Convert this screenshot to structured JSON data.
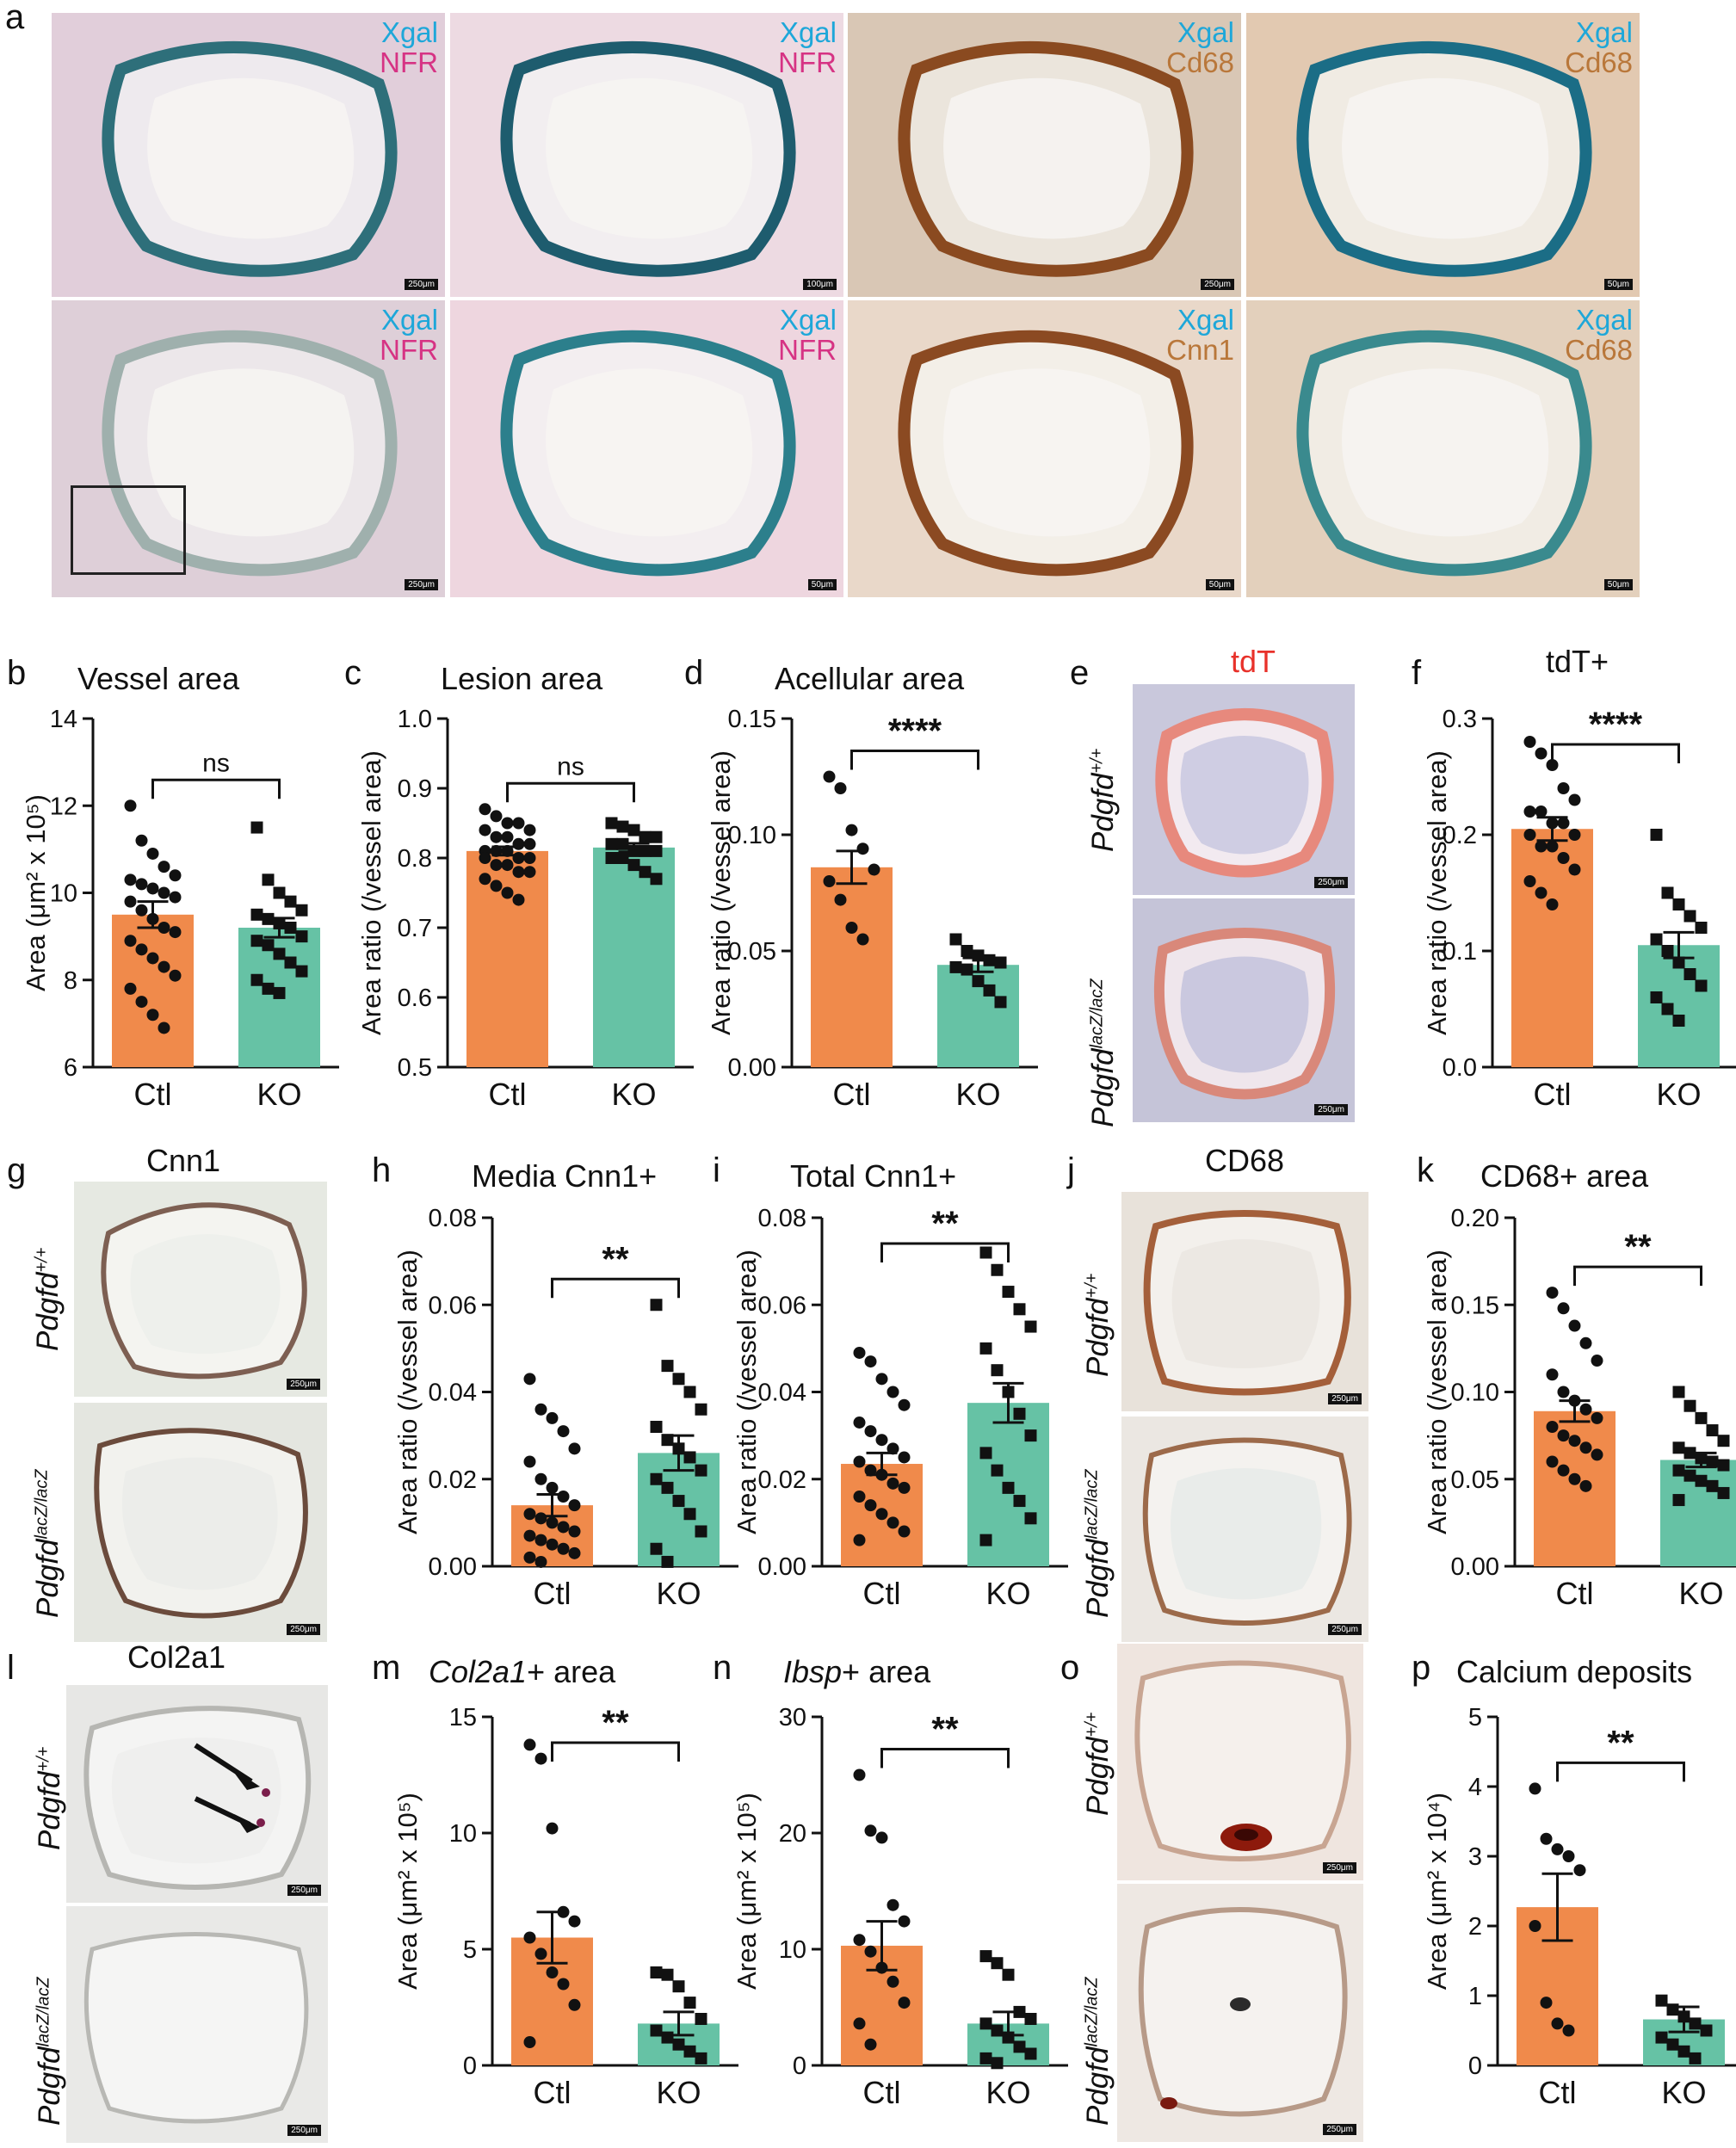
{
  "panels": {
    "a": {
      "label": "a",
      "tiles": [
        {
          "stains": [
            {
              "text": "Xgal",
              "color": "#1ea7d9"
            },
            {
              "text": "NFR",
              "color": "#d63384"
            }
          ],
          "scale": "250μm",
          "bg": "#eeeaee",
          "tissue": "#c99bb4",
          "ring": "#2e6f7a"
        },
        {
          "stains": [
            {
              "text": "Xgal",
              "color": "#1ea7d9"
            },
            {
              "text": "NFR",
              "color": "#d63384"
            }
          ],
          "scale": "100μm",
          "bg": "#f2eef0",
          "tissue": "#e4b5c9",
          "ring": "#1e5c6e"
        },
        {
          "stains": [
            {
              "text": "Xgal",
              "color": "#1ea7d9"
            },
            {
              "text": "Cd68",
              "color": "#b9773a"
            }
          ],
          "scale": "250μm",
          "bg": "#ebe5dc",
          "tissue": "#b7906e",
          "ring": "#8a4a20"
        },
        {
          "stains": [
            {
              "text": "Xgal",
              "color": "#1ea7d9"
            },
            {
              "text": "Cd68",
              "color": "#b9773a"
            }
          ],
          "scale": "50μm",
          "bg": "#f0ebe3",
          "tissue": "#c98a54",
          "ring": "#1b6d86"
        },
        {
          "stains": [
            {
              "text": "Xgal",
              "color": "#1ea7d9"
            },
            {
              "text": "NFR",
              "color": "#d63384"
            }
          ],
          "scale": "250μm",
          "bg": "#ece7ea",
          "tissue": "#c7a2b6",
          "ring": "#9fb0ad"
        },
        {
          "stains": [
            {
              "text": "Xgal",
              "color": "#1ea7d9"
            },
            {
              "text": "NFR",
              "color": "#d63384"
            }
          ],
          "scale": "50μm",
          "bg": "#f3eef0",
          "tissue": "#e6a8c1",
          "ring": "#2c7f8c"
        },
        {
          "stains": [
            {
              "text": "Xgal",
              "color": "#1ea7d9"
            },
            {
              "text": "Cnn1",
              "color": "#b9773a"
            }
          ],
          "scale": "50μm",
          "bg": "#f3efe8",
          "tissue": "#d7b08e",
          "ring": "#8b4a22"
        },
        {
          "stains": [
            {
              "text": "Xgal",
              "color": "#1ea7d9"
            },
            {
              "text": "Cd68",
              "color": "#b9773a"
            }
          ],
          "scale": "50μm",
          "bg": "#f1ece4",
          "tissue": "#c99d74",
          "ring": "#3a8a8e"
        }
      ]
    },
    "b": {
      "label": "b",
      "title": "Vessel area"
    },
    "c": {
      "label": "c",
      "title": "Lesion area"
    },
    "d": {
      "label": "d",
      "title": "Acellular area"
    },
    "e": {
      "label": "e",
      "title": "tdT",
      "title_color": "#e8312a",
      "scale": "250μm",
      "row1": {
        "gene": "Pdgfd",
        "sup": "+/+"
      },
      "row2": {
        "gene": "Pdgfd",
        "sup": "lacZ/lacZ"
      }
    },
    "f": {
      "label": "f",
      "title": "tdT+"
    },
    "g": {
      "label": "g",
      "title": "Cnn1",
      "scale": "250μm",
      "row1": {
        "gene": "Pdgfd",
        "sup": "+/+"
      },
      "row2": {
        "gene": "Pdgfd",
        "sup": "lacZ/lacZ"
      }
    },
    "h": {
      "label": "h",
      "title": "Media Cnn1+"
    },
    "i": {
      "label": "i",
      "title": "Total Cnn1+"
    },
    "j": {
      "label": "j",
      "title": "CD68",
      "scale": "250μm",
      "row1": {
        "gene": "Pdgfd",
        "sup": "+/+"
      },
      "row2": {
        "gene": "Pdgfd",
        "sup": "lacZ/lacZ"
      }
    },
    "k": {
      "label": "k",
      "title": "CD68+ area"
    },
    "l": {
      "label": "l",
      "title": "Col2a1",
      "scale": "250μm",
      "row1": {
        "gene": "Pdgfd",
        "sup": "+/+"
      },
      "row2": {
        "gene": "Pdgfd",
        "sup": "lacZ/lacZ"
      }
    },
    "m": {
      "label": "m",
      "title": "Col2a1",
      "title_suffix": "+ area"
    },
    "n": {
      "label": "n",
      "title": "Ibsp",
      "title_suffix": "+ area"
    },
    "o": {
      "label": "o",
      "scale": "250μm",
      "row1": {
        "gene": "Pdgfd",
        "sup": "+/+"
      },
      "row2": {
        "gene": "Pdgfd",
        "sup": "lacZ/lacZ"
      }
    },
    "p": {
      "label": "p",
      "title": "Calcium deposits"
    }
  },
  "colors": {
    "ctl": "#f08a4b",
    "ko": "#66c2a5"
  },
  "chart_data": [
    {
      "id": "b",
      "type": "bar",
      "categories": [
        "Ctl",
        "KO"
      ],
      "ylabel": "Area (μm² x 10⁵)",
      "ylim": [
        6,
        14
      ],
      "yticks": [
        6,
        8,
        10,
        12,
        14
      ],
      "tick_labels": [
        "6",
        "8",
        "10",
        "12",
        "14"
      ],
      "values": [
        9.5,
        9.2
      ],
      "sem": [
        0.3,
        0.22
      ],
      "sig": "ns",
      "points": [
        [
          12.0,
          11.2,
          10.9,
          10.6,
          10.4,
          10.3,
          10.2,
          10.1,
          10.0,
          9.9,
          9.8,
          9.6,
          9.4,
          9.2,
          9.1,
          8.9,
          8.7,
          8.5,
          8.3,
          8.1,
          7.8,
          7.5,
          7.2,
          6.9
        ],
        [
          11.5,
          10.3,
          10.0,
          9.8,
          9.6,
          9.5,
          9.4,
          9.3,
          9.2,
          9.0,
          8.9,
          8.8,
          8.6,
          8.4,
          8.2,
          8.0,
          7.8,
          7.7
        ]
      ]
    },
    {
      "id": "c",
      "type": "bar",
      "categories": [
        "Ctl",
        "KO"
      ],
      "ylabel": "Area ratio (/vessel area)",
      "ylim": [
        0.5,
        1.0
      ],
      "yticks": [
        0.5,
        0.6,
        0.7,
        0.8,
        0.9,
        1.0
      ],
      "tick_labels": [
        "0.5",
        "0.6",
        "0.7",
        "0.8",
        "0.9",
        "1.0"
      ],
      "values": [
        0.81,
        0.815
      ],
      "sem": [
        0.006,
        0.006
      ],
      "sig": "ns",
      "points": [
        [
          0.87,
          0.86,
          0.85,
          0.85,
          0.84,
          0.84,
          0.83,
          0.83,
          0.82,
          0.82,
          0.81,
          0.81,
          0.81,
          0.8,
          0.8,
          0.8,
          0.79,
          0.79,
          0.78,
          0.78,
          0.77,
          0.76,
          0.75,
          0.74
        ],
        [
          0.85,
          0.845,
          0.84,
          0.83,
          0.83,
          0.82,
          0.82,
          0.81,
          0.81,
          0.81,
          0.8,
          0.8,
          0.79,
          0.78,
          0.77
        ]
      ]
    },
    {
      "id": "d",
      "type": "bar",
      "categories": [
        "Ctl",
        "KO"
      ],
      "ylabel": "Area ratio (/vessel area)",
      "ylim": [
        0,
        0.15
      ],
      "yticks": [
        0,
        0.05,
        0.1,
        0.15
      ],
      "tick_labels": [
        "0.00",
        "0.05",
        "0.10",
        "0.15"
      ],
      "values": [
        0.086,
        0.044
      ],
      "sem": [
        0.007,
        0.003
      ],
      "sig": "****",
      "points": [
        [
          0.125,
          0.12,
          0.102,
          0.094,
          0.085,
          0.08,
          0.072,
          0.06,
          0.055
        ],
        [
          0.055,
          0.05,
          0.048,
          0.046,
          0.045,
          0.043,
          0.042,
          0.037,
          0.033,
          0.028
        ]
      ]
    },
    {
      "id": "f",
      "type": "bar",
      "categories": [
        "Ctl",
        "KO"
      ],
      "ylabel": "Area ratio (/vessel area)",
      "ylim": [
        0,
        0.3
      ],
      "yticks": [
        0,
        0.1,
        0.2,
        0.3
      ],
      "tick_labels": [
        "0.0",
        "0.1",
        "0.2",
        "0.3"
      ],
      "values": [
        0.205,
        0.105
      ],
      "sem": [
        0.01,
        0.011
      ],
      "sig": "****",
      "points": [
        [
          0.28,
          0.27,
          0.26,
          0.24,
          0.23,
          0.22,
          0.22,
          0.21,
          0.21,
          0.2,
          0.2,
          0.19,
          0.19,
          0.18,
          0.17,
          0.16,
          0.15,
          0.14
        ],
        [
          0.2,
          0.15,
          0.14,
          0.13,
          0.12,
          0.11,
          0.1,
          0.09,
          0.08,
          0.07,
          0.06,
          0.05,
          0.04
        ]
      ]
    },
    {
      "id": "h",
      "type": "bar",
      "categories": [
        "Ctl",
        "KO"
      ],
      "ylabel": "Area ratio (/vessel area)",
      "ylim": [
        0,
        0.08
      ],
      "yticks": [
        0,
        0.02,
        0.04,
        0.06,
        0.08
      ],
      "tick_labels": [
        "0.00",
        "0.02",
        "0.04",
        "0.06",
        "0.08"
      ],
      "values": [
        0.014,
        0.026
      ],
      "sem": [
        0.0025,
        0.004
      ],
      "sig": "**",
      "points": [
        [
          0.043,
          0.036,
          0.034,
          0.031,
          0.027,
          0.024,
          0.02,
          0.018,
          0.016,
          0.014,
          0.012,
          0.011,
          0.01,
          0.009,
          0.008,
          0.007,
          0.006,
          0.005,
          0.004,
          0.003,
          0.002,
          0.001
        ],
        [
          0.06,
          0.046,
          0.043,
          0.04,
          0.036,
          0.032,
          0.029,
          0.027,
          0.025,
          0.022,
          0.02,
          0.018,
          0.015,
          0.012,
          0.008,
          0.004,
          0.001
        ]
      ]
    },
    {
      "id": "i",
      "type": "bar",
      "categories": [
        "Ctl",
        "KO"
      ],
      "ylabel": "Area ratio (/vessel area)",
      "ylim": [
        0,
        0.08
      ],
      "yticks": [
        0,
        0.02,
        0.04,
        0.06,
        0.08
      ],
      "tick_labels": [
        "0.00",
        "0.02",
        "0.04",
        "0.06",
        "0.08"
      ],
      "values": [
        0.0235,
        0.0375
      ],
      "sem": [
        0.0025,
        0.0045
      ],
      "sig": "**",
      "points": [
        [
          0.049,
          0.047,
          0.043,
          0.04,
          0.037,
          0.033,
          0.031,
          0.029,
          0.027,
          0.025,
          0.024,
          0.022,
          0.021,
          0.019,
          0.018,
          0.016,
          0.014,
          0.012,
          0.01,
          0.008,
          0.006
        ],
        [
          0.072,
          0.068,
          0.063,
          0.059,
          0.055,
          0.05,
          0.045,
          0.04,
          0.035,
          0.03,
          0.026,
          0.022,
          0.018,
          0.015,
          0.011,
          0.006
        ]
      ]
    },
    {
      "id": "k",
      "type": "bar",
      "categories": [
        "Ctl",
        "KO"
      ],
      "ylabel": "Area ratio (/vessel area)",
      "ylim": [
        0,
        0.2
      ],
      "yticks": [
        0,
        0.05,
        0.1,
        0.15,
        0.2
      ],
      "tick_labels": [
        "0.00",
        "0.05",
        "0.10",
        "0.15",
        "0.20"
      ],
      "values": [
        0.089,
        0.061
      ],
      "sem": [
        0.006,
        0.004
      ],
      "sig": "**",
      "points": [
        [
          0.157,
          0.148,
          0.138,
          0.128,
          0.118,
          0.11,
          0.1,
          0.095,
          0.09,
          0.085,
          0.08,
          0.075,
          0.072,
          0.068,
          0.064,
          0.06,
          0.055,
          0.05,
          0.046
        ],
        [
          0.1,
          0.092,
          0.085,
          0.078,
          0.072,
          0.068,
          0.065,
          0.062,
          0.06,
          0.058,
          0.055,
          0.052,
          0.049,
          0.046,
          0.042,
          0.038
        ]
      ]
    },
    {
      "id": "m",
      "type": "bar",
      "categories": [
        "Ctl",
        "KO"
      ],
      "ylabel": "Area (μm² x 10⁵)",
      "ylim": [
        0,
        15
      ],
      "yticks": [
        0,
        5,
        10,
        15
      ],
      "tick_labels": [
        "0",
        "5",
        "10",
        "15"
      ],
      "values": [
        5.5,
        1.8
      ],
      "sem": [
        1.1,
        0.5
      ],
      "sig": "**",
      "points": [
        [
          13.8,
          13.2,
          10.2,
          6.6,
          6.2,
          5.5,
          4.8,
          4.0,
          3.5,
          2.6,
          1.0
        ],
        [
          4.0,
          3.9,
          3.4,
          2.7,
          2.0,
          1.5,
          1.2,
          0.9,
          0.6,
          0.3
        ]
      ]
    },
    {
      "id": "n",
      "type": "bar",
      "categories": [
        "Ctl",
        "KO"
      ],
      "ylabel": "Area (μm² x 10⁵)",
      "ylim": [
        0,
        30
      ],
      "yticks": [
        0,
        10,
        20,
        30
      ],
      "tick_labels": [
        "0",
        "10",
        "20",
        "30"
      ],
      "values": [
        10.3,
        3.6
      ],
      "sem": [
        2.1,
        1.0
      ],
      "sig": "**",
      "points": [
        [
          25.0,
          20.2,
          19.6,
          13.8,
          12.4,
          10.8,
          9.8,
          8.4,
          7.2,
          5.4,
          3.6,
          1.8
        ],
        [
          9.4,
          8.8,
          7.8,
          4.6,
          4.0,
          3.6,
          3.0,
          2.4,
          1.6,
          1.0,
          0.6,
          0.2
        ]
      ]
    },
    {
      "id": "p",
      "type": "bar",
      "categories": [
        "Ctl",
        "KO"
      ],
      "ylabel": "Area (μm² x 10⁴)",
      "ylim": [
        0,
        5
      ],
      "yticks": [
        0,
        1,
        2,
        3,
        4,
        5
      ],
      "tick_labels": [
        "0",
        "1",
        "2",
        "3",
        "4",
        "5"
      ],
      "values": [
        2.27,
        0.66
      ],
      "sem": [
        0.48,
        0.18
      ],
      "sig": "**",
      "points": [
        [
          3.97,
          3.25,
          3.1,
          3.0,
          2.8,
          2.0,
          0.9,
          0.6,
          0.5
        ],
        [
          0.93,
          0.8,
          0.7,
          0.6,
          0.5,
          0.4,
          0.3,
          0.2,
          0.1
        ]
      ]
    }
  ]
}
